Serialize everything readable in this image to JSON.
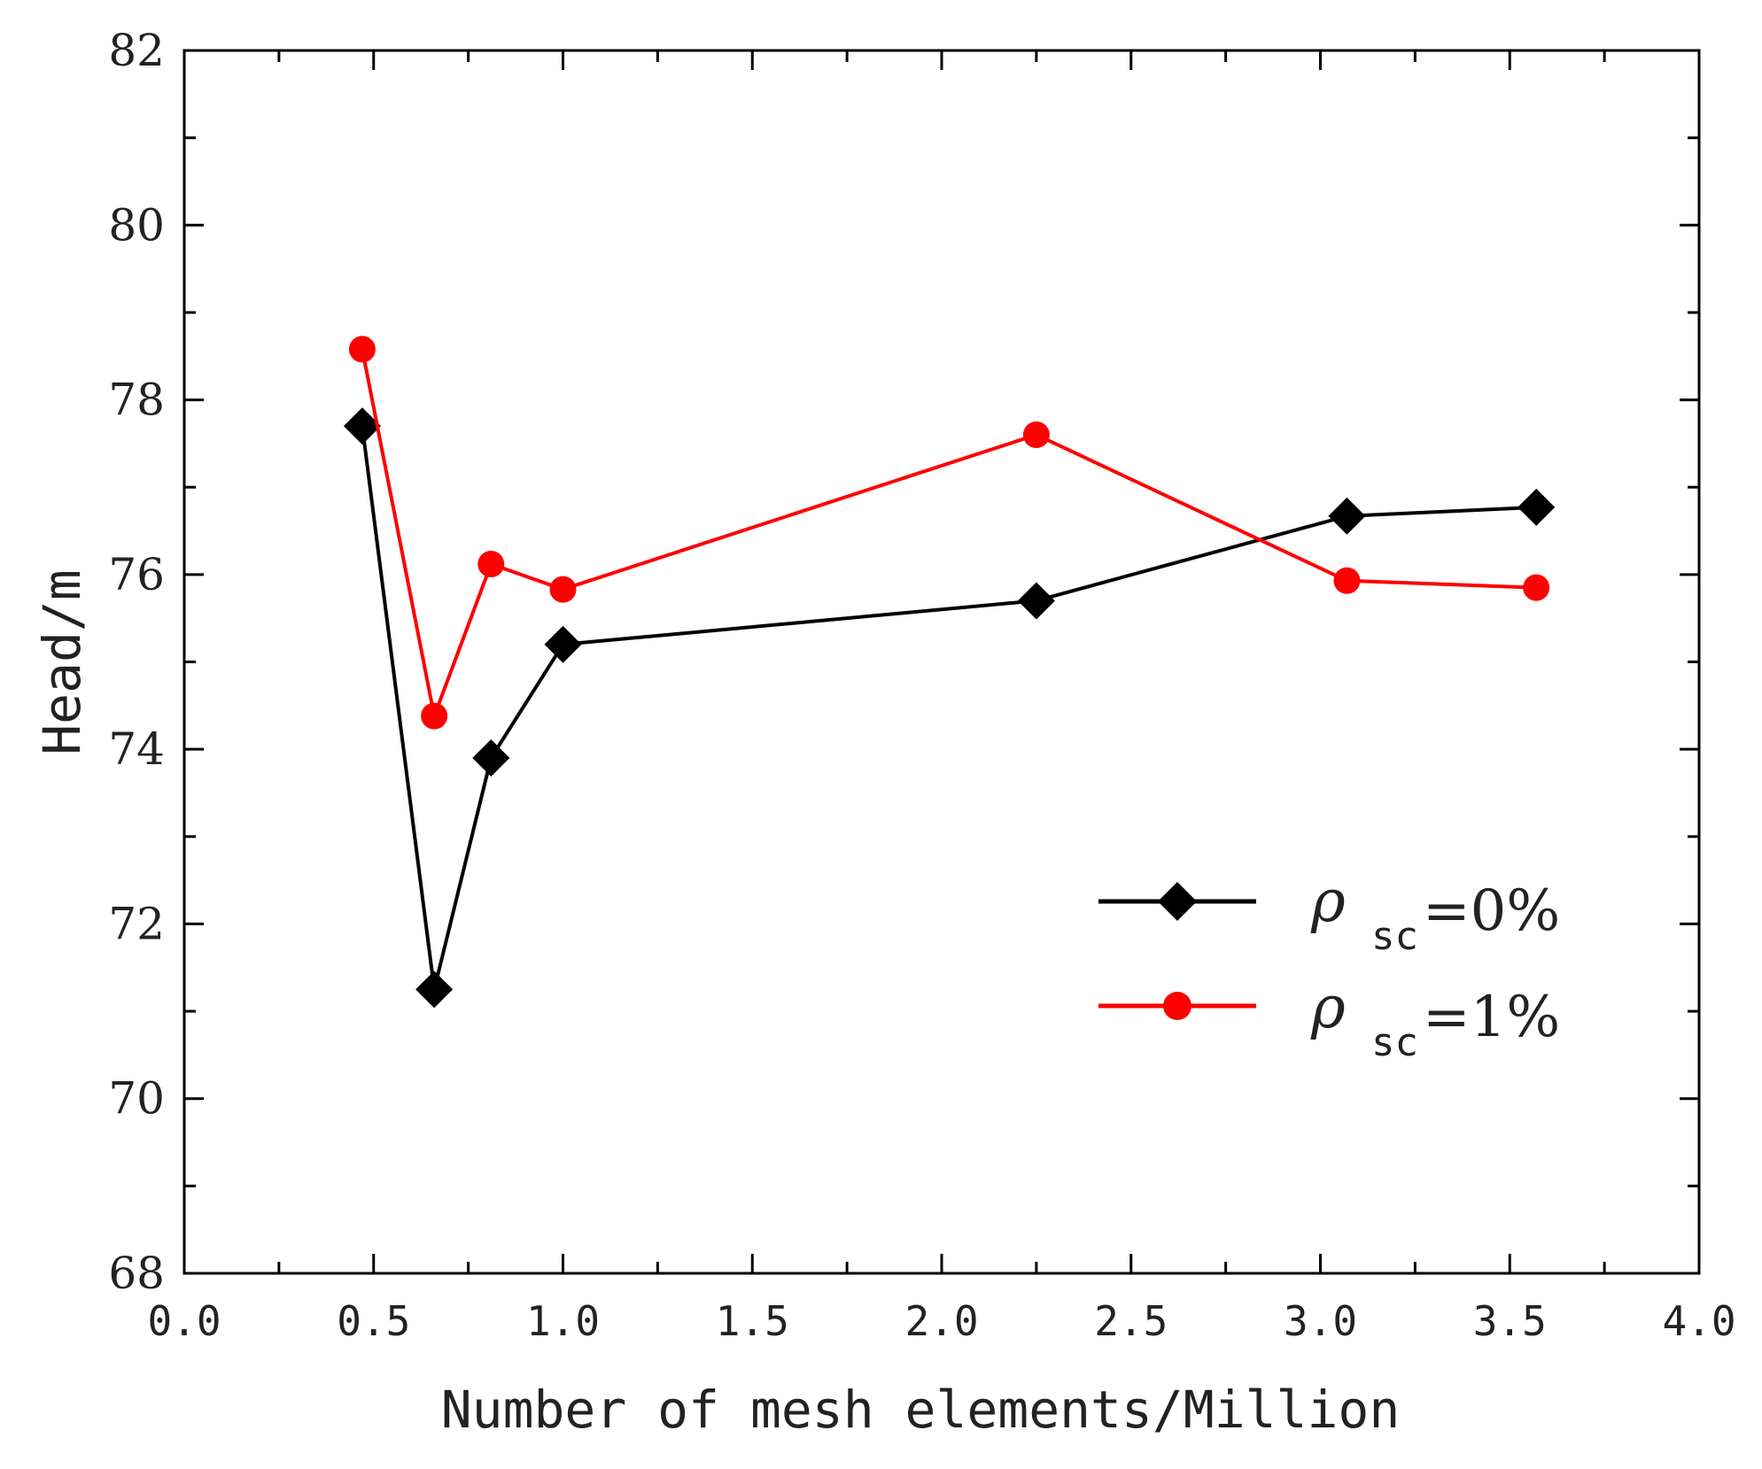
{
  "chart_data": {
    "type": "line",
    "title": "",
    "xlabel": "Number of mesh elements/Million",
    "ylabel": "Head/m",
    "xlim": [
      0.0,
      4.0
    ],
    "ylim": [
      68,
      82
    ],
    "x_ticks": [
      "0.0",
      "0.5",
      "1.0",
      "1.5",
      "2.0",
      "2.5",
      "3.0",
      "3.5",
      "4.0"
    ],
    "y_ticks": [
      "68",
      "70",
      "72",
      "74",
      "76",
      "78",
      "80",
      "82"
    ],
    "legend_position": "center-right",
    "grid": false,
    "series": [
      {
        "name": "ρsc=0%",
        "symbol": "ρ",
        "subscript": "sc",
        "value_text": "=0%",
        "color": "#000000",
        "marker": "diamond",
        "x": [
          0.47,
          0.66,
          0.81,
          1.0,
          2.25,
          3.07,
          3.57
        ],
        "y": [
          77.7,
          71.25,
          73.9,
          75.2,
          75.7,
          76.67,
          76.77
        ]
      },
      {
        "name": "ρsc=1%",
        "symbol": "ρ",
        "subscript": "sc",
        "value_text": "=1%",
        "color": "#ff0000",
        "marker": "circle",
        "x": [
          0.47,
          0.66,
          0.81,
          1.0,
          2.25,
          3.07,
          3.57
        ],
        "y": [
          78.58,
          74.38,
          76.12,
          75.83,
          77.6,
          75.93,
          75.85
        ]
      }
    ]
  }
}
